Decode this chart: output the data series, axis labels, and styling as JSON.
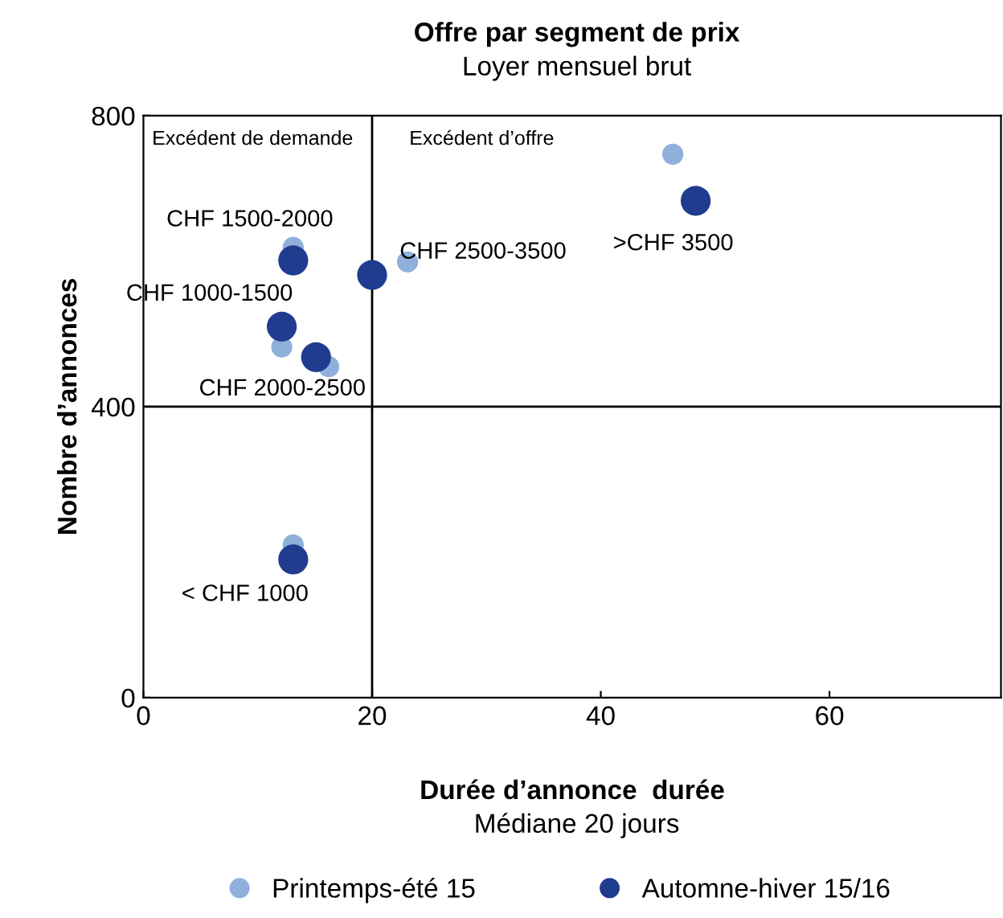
{
  "chart_data": {
    "type": "scatter",
    "title": "Offre par segment de prix",
    "subtitle": "Loyer mensuel brut",
    "xlabel": "Durée d’annonce  durée",
    "ylabel": "Nombre d’annonces",
    "series": [
      {
        "name": "Printemps-été 15",
        "color": "#8fb0da",
        "x": [
          13.1,
          12.1,
          16.2,
          23.1,
          13.1,
          46.3
        ],
        "values": [
          619,
          482,
          455,
          599,
          210,
          747
        ]
      },
      {
        "name": "Automne-hiver 15/16",
        "color": "#1f3c8f",
        "x": [
          13.1,
          12.1,
          15.1,
          20.0,
          13.1,
          48.3
        ],
        "values": [
          601,
          510,
          468,
          581,
          190,
          683
        ]
      }
    ],
    "annotations": [
      "Médiane 20 jours",
      "Excédent de demande",
      "Excédent d’offre",
      {
        "text": "CHF 1500-2000",
        "x": 13.1,
        "y": 601
      },
      {
        "text": "CHF 1000-1500",
        "x": 12.1,
        "y": 510
      },
      {
        "text": "CHF 2000-2500",
        "x": 15.1,
        "y": 468
      },
      {
        "text": "CHF 2500-3500",
        "x": 20.0,
        "y": 581
      },
      {
        "text": "< CHF 1000",
        "x": 13.1,
        "y": 190
      },
      {
        "text": ">CHF 3500",
        "x": 48.3,
        "y": 683
      }
    ],
    "ref_lines": [
      {
        "axis": "x",
        "value": 20,
        "color": "#000000"
      },
      {
        "axis": "y",
        "value": 400,
        "color": "#000000"
      }
    ],
    "xlim": [
      0,
      75
    ],
    "ylim": [
      0,
      800
    ],
    "xticks": [
      0,
      20,
      40,
      60
    ],
    "yticks": [
      0,
      400,
      800
    ],
    "grid": false,
    "legend": "bottom",
    "marker": "circle"
  }
}
